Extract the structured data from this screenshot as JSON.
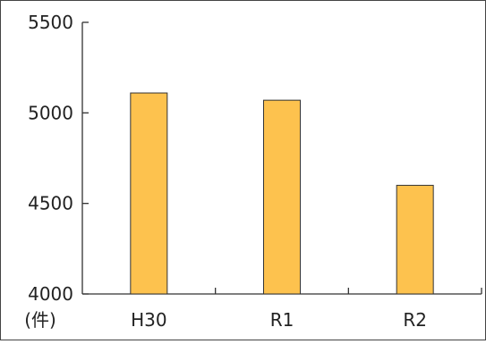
{
  "chart_data": {
    "type": "bar",
    "categories": [
      "H30",
      "R1",
      "R2"
    ],
    "values": [
      5110,
      5070,
      4600
    ],
    "ylim": [
      4000,
      5500
    ],
    "yticks": [
      4000,
      4500,
      5000,
      5500
    ],
    "unit_label": "(件)",
    "bar_color": "#FDC24E",
    "bar_stroke": "#333333",
    "grid": false,
    "legend": "none"
  }
}
